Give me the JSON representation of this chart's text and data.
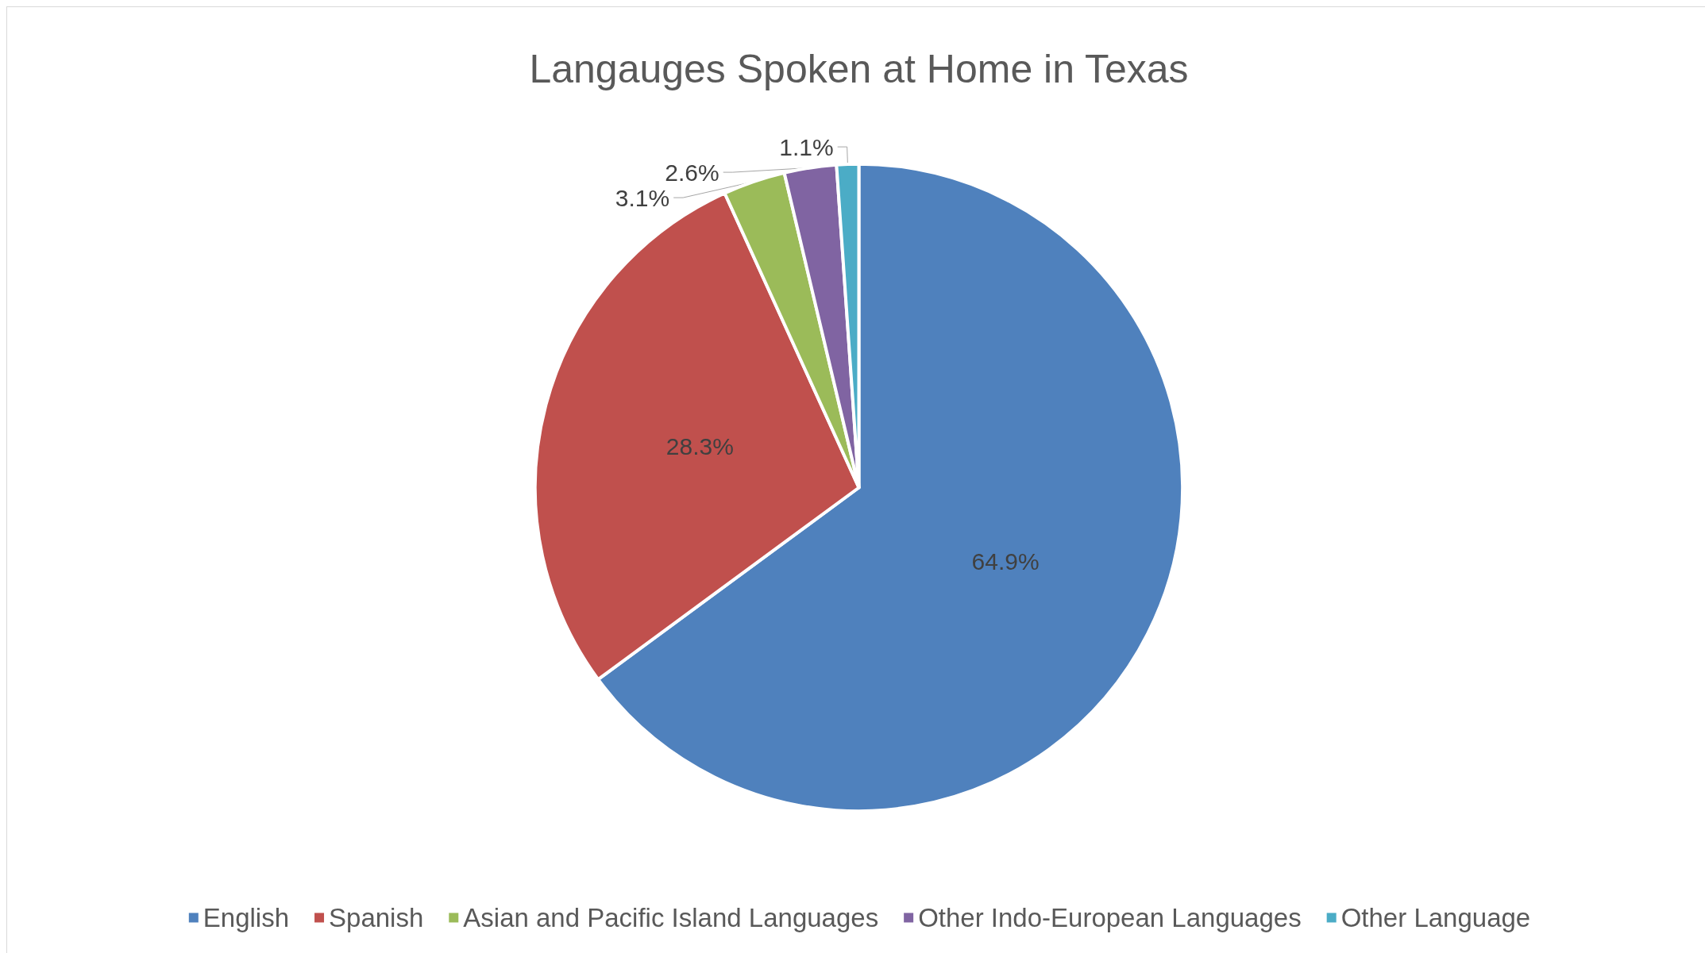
{
  "chart_data": {
    "type": "pie",
    "title": "Langauges Spoken at Home in Texas",
    "categories": [
      "English",
      "Spanish",
      "Asian and Pacific Island Languages",
      "Other Indo-European Languages",
      "Other Language"
    ],
    "values": [
      64.9,
      28.3,
      3.1,
      2.6,
      1.1
    ],
    "colors": [
      "#4f81bd",
      "#c0504d",
      "#9bbb59",
      "#8064a2",
      "#4bacc6"
    ],
    "value_labels": [
      "64.9%",
      "28.3%",
      "3.1%",
      "2.6%",
      "1.1%"
    ],
    "legend": "bottom"
  }
}
